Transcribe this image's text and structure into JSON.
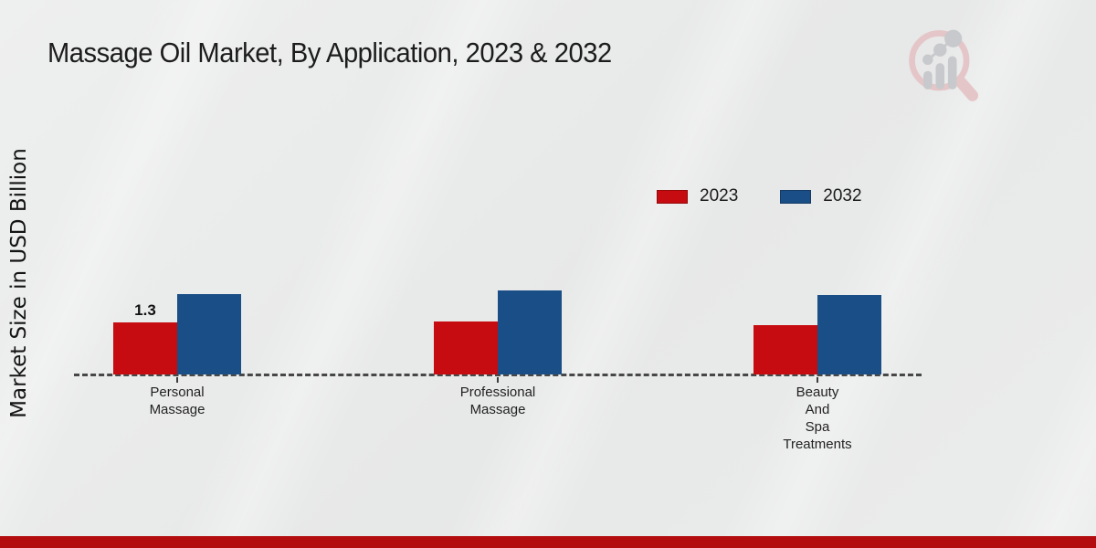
{
  "page": {
    "title": "Massage Oil Market, By Application, 2023 & 2032",
    "ylabel": "Market Size in USD Billion",
    "footer_color": "#b30d0f",
    "background_color": "#e9eaea"
  },
  "legend": {
    "position": "upper-right",
    "items": [
      {
        "label": "2023",
        "color": "#c60c10"
      },
      {
        "label": "2032",
        "color": "#1a4e86"
      }
    ]
  },
  "watermark": {
    "icon": "market-research-future-logo",
    "ring_color": "#e5c6c8",
    "bar_color": "#c8c9cc"
  },
  "chart_data": {
    "type": "bar",
    "title": "Massage Oil Market, By Application, 2023 & 2032",
    "xlabel": "",
    "ylabel": "Market Size in USD Billion",
    "categories": [
      "Personal\nMassage",
      "Professional\nMassage",
      "Beauty\nAnd\nSpa\nTreatments"
    ],
    "series": [
      {
        "name": "2023",
        "color": "#c60c10",
        "values": [
          1.3,
          1.32,
          1.23
        ]
      },
      {
        "name": "2032",
        "color": "#1a4e86",
        "values": [
          2.0,
          2.1,
          1.98
        ]
      }
    ],
    "annotations": [
      {
        "series": "2023",
        "category_index": 0,
        "text": "1.3"
      }
    ],
    "ylim": [
      0,
      2.5
    ],
    "gridlines": false,
    "baseline_style": "dashed",
    "legend_position": "upper-right"
  }
}
